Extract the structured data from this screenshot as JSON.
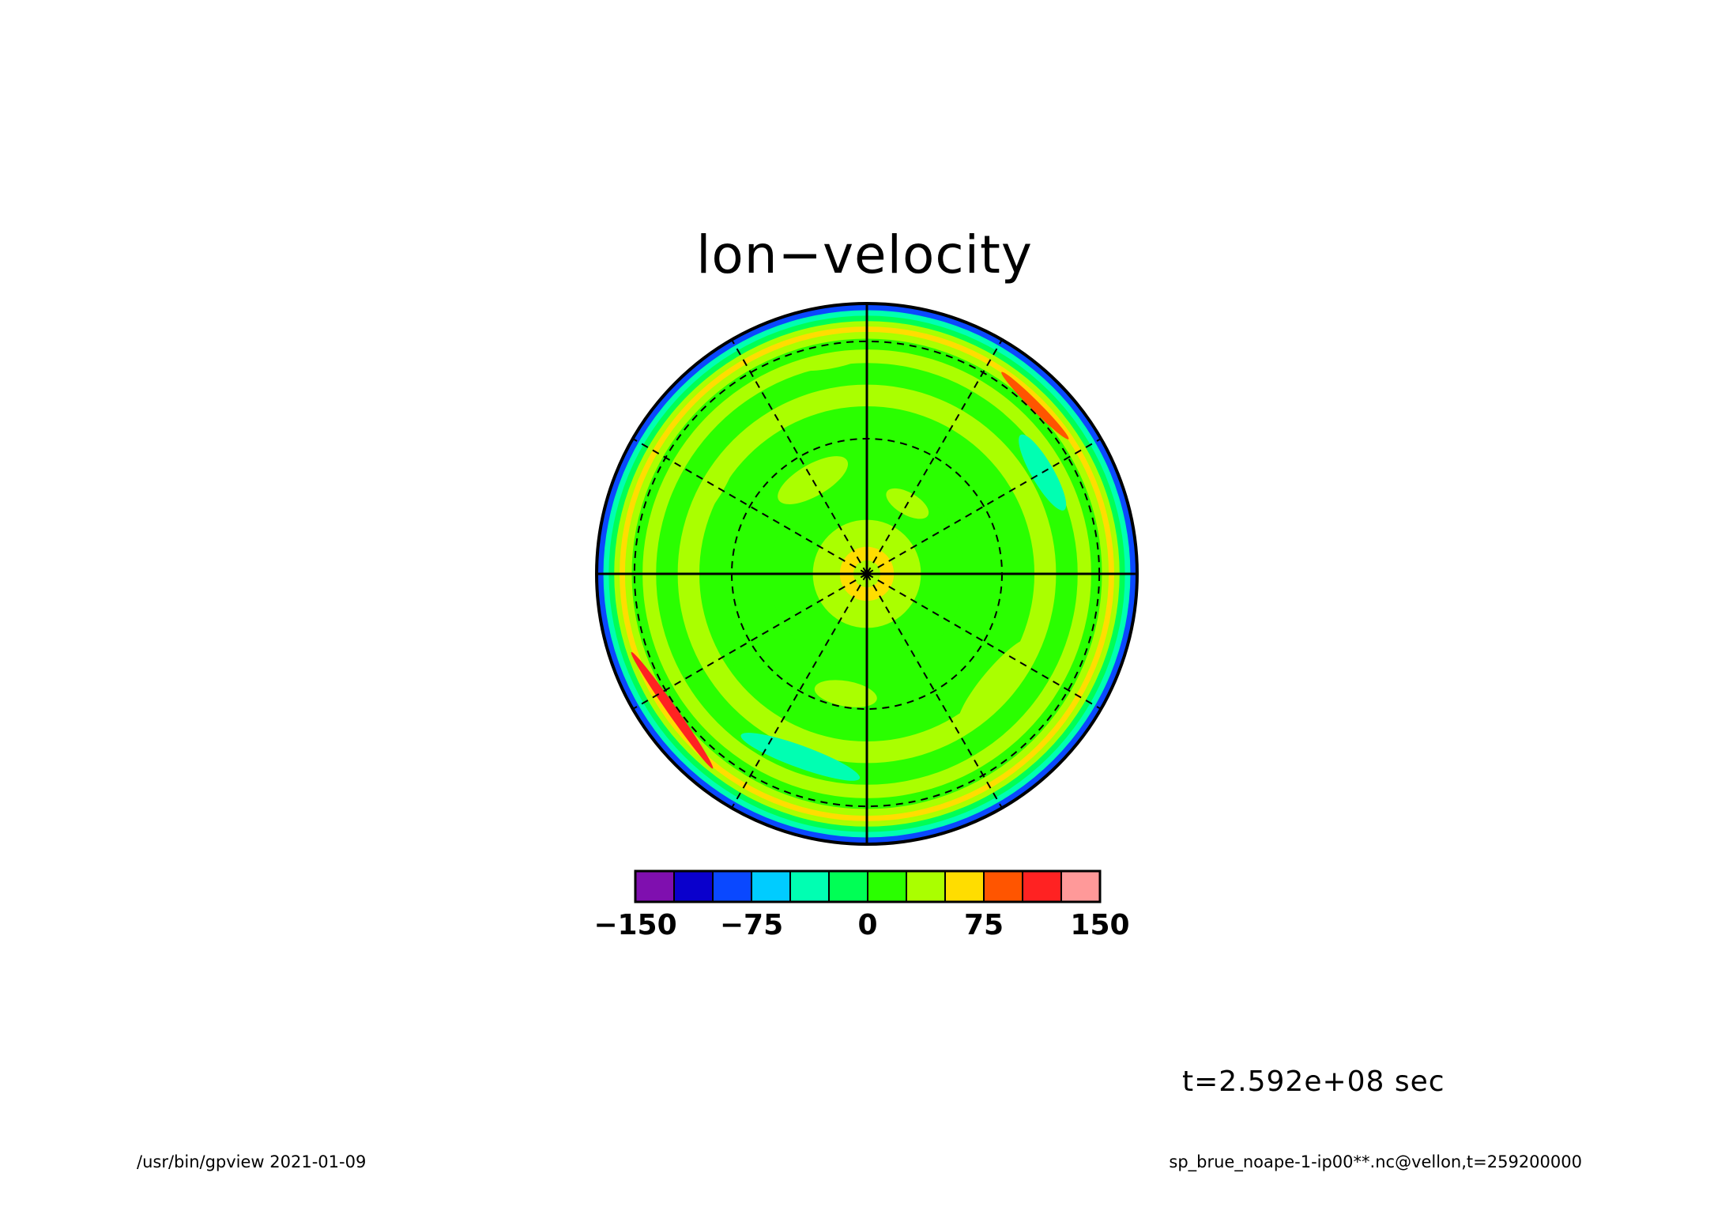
{
  "chart_data": {
    "type": "heatmap",
    "projection": "polar stereographic",
    "title": "lon−velocity",
    "variable": "lon-velocity",
    "time_label": "t=2.592e+08 sec",
    "colorbar": {
      "levels": [
        -150,
        -125,
        -100,
        -75,
        -50,
        -25,
        0,
        25,
        50,
        75,
        100,
        125,
        150
      ],
      "colors": [
        "#7f0faf",
        "#0a00cc",
        "#0a48ff",
        "#00ccff",
        "#00ffb2",
        "#00ff55",
        "#2aff00",
        "#aaff00",
        "#ffdd00",
        "#ff5500",
        "#ff2222",
        "#ff9999"
      ],
      "tick_values": [
        -150,
        -75,
        0,
        75,
        150
      ],
      "tick_labels": [
        "−150",
        "−75",
        "0",
        "75",
        "150"
      ]
    },
    "field_description": [
      {
        "region": "pole",
        "approx_value": 60
      },
      {
        "region": "inner disk",
        "approx_value": 10
      },
      {
        "region": "mid rings",
        "approx_value": 30
      },
      {
        "region": "outer band",
        "approx_value": 0
      },
      {
        "region": "rim",
        "approx_value": -80
      }
    ],
    "grid": {
      "meridians_deg": [
        0,
        30,
        60,
        90,
        120,
        150,
        180,
        210,
        240,
        270,
        300,
        330
      ],
      "latitude_circles": 2,
      "dashed": true
    }
  },
  "footer": {
    "left": "/usr/bin/gpview   2021-01-09",
    "right": "sp_brue_noape-1-ip00**.nc@vellon,t=259200000"
  }
}
